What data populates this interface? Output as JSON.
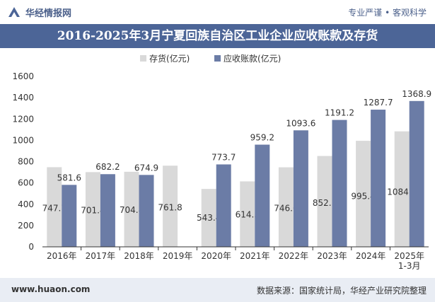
{
  "header": {
    "brand": "华经情报网",
    "slogan": "专业严谨 • 客观科学",
    "logo": "huajing-logo-icon"
  },
  "footer": {
    "site": "www.huaon.com",
    "source": "数据来源：国家统计局，华经产业研究院整理"
  },
  "colors": {
    "header_band": "#4c6597",
    "inventory": "#d9d9d9",
    "receivables": "#6b7ca6",
    "footer_band": "#e9edf4"
  },
  "chart_data": {
    "type": "bar",
    "title": "2016-2025年3月宁夏回族自治区工业企业应收账款及存货",
    "categories": [
      "2016年",
      "2017年",
      "2018年",
      "2019年",
      "2020年",
      "2021年",
      "2022年",
      "2023年",
      "2024年",
      "2025年\n1-3月"
    ],
    "series": [
      {
        "name": "存货(亿元)",
        "values": [
          747.7,
          701.4,
          704.8,
          761.8,
          543.4,
          614.5,
          746.6,
          852.7,
          995.4,
          1084.1
        ]
      },
      {
        "name": "应收账款(亿元)",
        "values": [
          581.6,
          682.2,
          674.9,
          null,
          773.7,
          959.2,
          1093.6,
          1191.2,
          1287.7,
          1368.9
        ]
      }
    ],
    "value_labels": [
      [
        "747.7",
        "701.4",
        "704.8",
        "761.8",
        "543.4",
        "614.5",
        "746.6",
        "852.7",
        "995.4",
        "1084.1"
      ],
      [
        "581.6",
        "682.2",
        "674.9",
        "",
        "773.7",
        "959.2",
        "1093.6",
        "1191.2",
        "1287.7",
        "1368.9"
      ]
    ],
    "ylim": [
      0,
      1600
    ],
    "yticks": [
      0,
      200,
      400,
      600,
      800,
      1000,
      1200,
      1400,
      1600
    ],
    "legend": "top-center",
    "grid": false
  }
}
